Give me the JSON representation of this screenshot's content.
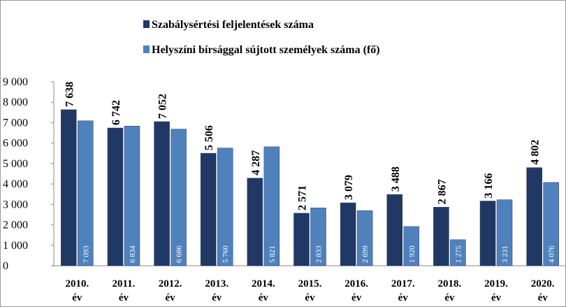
{
  "chart_data": {
    "type": "bar",
    "categories": [
      "2010. év",
      "2011. év",
      "2012. év",
      "2013. év",
      "2014. év",
      "2015. év",
      "2016. év",
      "2017. év",
      "2018. év",
      "2019. év",
      "2020. év"
    ],
    "series": [
      {
        "name": "Szabálysértési feljelentések száma",
        "color": "#1f3864",
        "values": [
          7638,
          6742,
          7052,
          5506,
          4287,
          2571,
          3079,
          3488,
          2867,
          3166,
          4802
        ],
        "value_labels": [
          "7 638",
          "6 742",
          "7 052",
          "5 506",
          "4 287",
          "2 571",
          "3 079",
          "3 488",
          "2 867",
          "3 166",
          "4 802"
        ]
      },
      {
        "name": "Helyszíni bírsággal sújtott személyek száma (fő)",
        "color": "#4f81bd",
        "values": [
          7093,
          6834,
          6686,
          5760,
          5821,
          2833,
          2699,
          1920,
          1275,
          3231,
          4076
        ],
        "value_labels": [
          "7 093",
          "6 834",
          "6 686",
          "5 760",
          "5 821",
          "2 833",
          "2 699",
          "1 920",
          "1 275",
          "3 231",
          "4 076"
        ]
      }
    ],
    "ylim": [
      0,
      9000
    ],
    "yticks": [
      {
        "value": 0,
        "label": "0"
      },
      {
        "value": 1000,
        "label": "1 000"
      },
      {
        "value": 2000,
        "label": "2 000"
      },
      {
        "value": 3000,
        "label": "3 000"
      },
      {
        "value": 4000,
        "label": "4 000"
      },
      {
        "value": 5000,
        "label": "5 000"
      },
      {
        "value": 6000,
        "label": "6 000"
      },
      {
        "value": 7000,
        "label": "7 000"
      },
      {
        "value": 8000,
        "label": "8 000"
      },
      {
        "value": 9000,
        "label": "9 000"
      }
    ],
    "legend": "top"
  }
}
